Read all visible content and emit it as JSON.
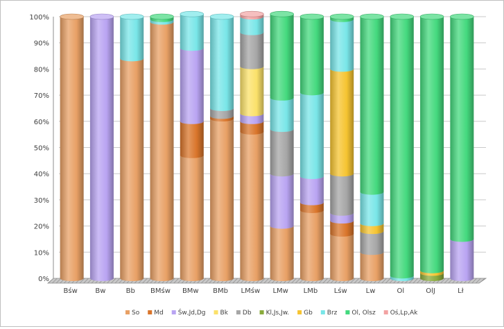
{
  "chart_data": {
    "type": "bar",
    "stacked": "percent",
    "categories": [
      "Bśw",
      "Bw",
      "Bb",
      "BMśw",
      "BMw",
      "BMb",
      "LMśw",
      "LMw",
      "LMb",
      "Lśw",
      "Lw",
      "Ol",
      "OlJ",
      "Lł"
    ],
    "ylim": [
      0,
      100
    ],
    "yticks": [
      "0%",
      "10%",
      "20%",
      "30%",
      "40%",
      "50%",
      "60%",
      "70%",
      "80%",
      "90%",
      "100%"
    ],
    "grid": true,
    "legend_position": "bottom",
    "series": [
      {
        "name": "So",
        "color": "#e8a065",
        "values": [
          100,
          0,
          84,
          98,
          47,
          61,
          56,
          20,
          26,
          17,
          10,
          0,
          0,
          0
        ]
      },
      {
        "name": "Md",
        "color": "#d9752b",
        "values": [
          0,
          0,
          0,
          0,
          13,
          1,
          4,
          0,
          3,
          5,
          0,
          0,
          0,
          0
        ]
      },
      {
        "name": "Św, Jd, Dg",
        "color": "#b9a4f2",
        "values": [
          0,
          100,
          0,
          0,
          28,
          0,
          3,
          20,
          10,
          3,
          0,
          0,
          0,
          15
        ]
      },
      {
        "name": "Bk",
        "color": "#fbe16a",
        "values": [
          0,
          0,
          0,
          0,
          0,
          0,
          18,
          0,
          0,
          0,
          0,
          0,
          0,
          0
        ]
      },
      {
        "name": "Db",
        "color": "#a6a6a6",
        "values": [
          0,
          0,
          0,
          0,
          0,
          3,
          13,
          17,
          0,
          15,
          8,
          0,
          0,
          0
        ]
      },
      {
        "name": "Kl, Js, Jw.",
        "color": "#8aab3c",
        "values": [
          0,
          0,
          0,
          0,
          0,
          0,
          0,
          0,
          0,
          0,
          0,
          0,
          2,
          0
        ]
      },
      {
        "name": "Gb",
        "color": "#f6c431",
        "values": [
          0,
          0,
          0,
          0,
          0,
          0,
          0,
          0,
          0,
          40,
          3,
          0,
          1,
          0
        ]
      },
      {
        "name": "Brz",
        "color": "#79e6e8",
        "values": [
          0,
          0,
          16,
          1,
          13,
          35,
          6,
          12,
          32,
          19,
          12,
          1,
          0,
          0
        ]
      },
      {
        "name": "Ol, Olsz",
        "color": "#44d97e",
        "values": [
          0,
          0,
          0,
          1,
          0,
          0,
          0,
          32,
          29,
          1,
          67,
          99,
          97,
          85
        ]
      },
      {
        "name": "Oś, Lp, Ak",
        "color": "#f2a3a3",
        "values": [
          0,
          0,
          0,
          0,
          0,
          0,
          1,
          0,
          0,
          0,
          0,
          0,
          0,
          0
        ]
      }
    ],
    "legend_labels": [
      "So",
      "Md",
      "Św,Jd,Dg",
      "Bk",
      "Db",
      "Kl,Js,Jw.",
      "Gb",
      "Brz",
      "Ol, Olsz",
      "Oś,Lp,Ak"
    ]
  }
}
